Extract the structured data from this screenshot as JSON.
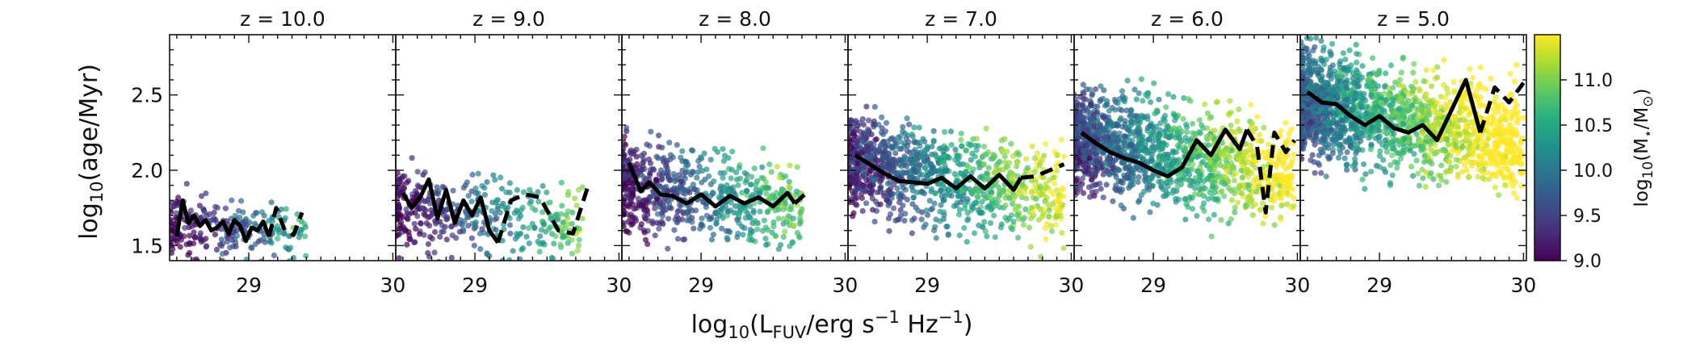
{
  "chart_data": {
    "type": "scatter",
    "panels": [
      {
        "title": "z = 10.0",
        "median_solid": {
          "x": [
            28.5,
            28.54,
            28.58,
            28.62,
            28.66,
            28.7,
            28.74,
            28.78,
            28.82,
            28.86,
            28.9,
            28.94,
            28.98,
            29.02,
            29.06,
            29.1,
            29.14
          ],
          "y": [
            1.56,
            1.8,
            1.65,
            1.7,
            1.63,
            1.67,
            1.6,
            1.62,
            1.66,
            1.58,
            1.67,
            1.63,
            1.53,
            1.62,
            1.6,
            1.66,
            1.56
          ]
        },
        "median_dashed": {
          "x": [
            29.14,
            29.19,
            29.25,
            29.31,
            29.37
          ],
          "y": [
            1.56,
            1.75,
            1.6,
            1.57,
            1.72
          ]
        }
      },
      {
        "title": "z = 9.0",
        "median_solid": {
          "x": [
            28.5,
            28.56,
            28.62,
            28.68,
            28.74,
            28.8,
            28.86,
            28.92,
            28.98,
            29.04,
            29.1,
            29.16
          ],
          "y": [
            1.85,
            1.75,
            1.82,
            1.94,
            1.68,
            1.87,
            1.65,
            1.8,
            1.7,
            1.82,
            1.6,
            1.52
          ]
        },
        "median_dashed": {
          "x": [
            29.16,
            29.25,
            29.35,
            29.45,
            29.58,
            29.68,
            29.78
          ],
          "y": [
            1.52,
            1.8,
            1.84,
            1.82,
            1.6,
            1.58,
            1.88
          ]
        }
      },
      {
        "title": "z = 8.0",
        "median_solid": {
          "x": [
            28.5,
            28.58,
            28.64,
            28.72,
            28.8,
            28.9,
            29,
            29.1,
            29.2,
            29.3,
            29.4,
            29.5,
            29.6,
            29.65
          ],
          "y": [
            2.05,
            1.86,
            1.92,
            1.84,
            1.83,
            1.78,
            1.84,
            1.76,
            1.83,
            1.78,
            1.82,
            1.76,
            1.85,
            1.78
          ]
        },
        "median_dashed": {
          "x": [
            29.65,
            29.72
          ],
          "y": [
            1.78,
            1.84
          ]
        }
      },
      {
        "title": "z = 7.0",
        "median_solid": {
          "x": [
            28.5,
            28.6,
            28.7,
            28.8,
            28.9,
            29,
            29.1,
            29.2,
            29.3,
            29.4,
            29.5,
            29.6,
            29.65
          ],
          "y": [
            2.1,
            2.04,
            1.98,
            1.93,
            1.92,
            1.91,
            1.95,
            1.88,
            1.96,
            1.88,
            1.97,
            1.87,
            1.95
          ]
        },
        "median_dashed": {
          "x": [
            29.65,
            29.75,
            29.85,
            29.95
          ],
          "y": [
            1.95,
            1.96,
            2.0,
            2.04
          ]
        }
      },
      {
        "title": "z = 6.0",
        "median_solid": {
          "x": [
            28.5,
            28.6,
            28.7,
            28.8,
            28.9,
            29,
            29.1,
            29.2,
            29.3,
            29.4,
            29.5,
            29.6,
            29.65
          ],
          "y": [
            2.25,
            2.18,
            2.12,
            2.08,
            2.05,
            2.0,
            1.96,
            2.02,
            2.2,
            2.1,
            2.27,
            2.14,
            2.27
          ]
        },
        "median_dashed": {
          "x": [
            29.65,
            29.72,
            29.78,
            29.84,
            29.92,
            29.98
          ],
          "y": [
            2.27,
            2.16,
            1.72,
            2.25,
            2.12,
            2.2
          ]
        }
      },
      {
        "title": "z = 5.0",
        "median_solid": {
          "x": [
            28.5,
            28.6,
            28.7,
            28.8,
            28.9,
            29,
            29.1,
            29.2,
            29.3,
            29.4,
            29.5,
            29.6,
            29.7
          ],
          "y": [
            2.52,
            2.45,
            2.44,
            2.36,
            2.3,
            2.36,
            2.28,
            2.25,
            2.3,
            2.2,
            2.4,
            2.6,
            2.25
          ]
        },
        "median_dashed": {
          "x": [
            29.7,
            29.8,
            29.9,
            30.0
          ],
          "y": [
            2.25,
            2.55,
            2.45,
            2.58
          ]
        }
      }
    ],
    "xlabel": "log10(LFUV/erg s−1 Hz−1)",
    "ylabel": "log10(age/Myr)",
    "xlim": [
      28.45,
      30.02
    ],
    "ylim": [
      1.4,
      2.9
    ],
    "xticks": [
      29,
      30
    ],
    "yticks": [
      1.5,
      2.0,
      2.5
    ],
    "colorbar": {
      "label": "log10(M⋆/M⊙)",
      "range": [
        9.0,
        11.5
      ],
      "ticks": [
        9.0,
        9.5,
        10.0,
        10.5,
        11.0
      ],
      "colormap": "viridis"
    },
    "point_colors": [
      "#440154",
      "#472c7a",
      "#3b518b",
      "#2c718e",
      "#21908d",
      "#27ad81",
      "#5cc863",
      "#aadc32",
      "#fde725"
    ],
    "median_line_color": "#000000"
  }
}
